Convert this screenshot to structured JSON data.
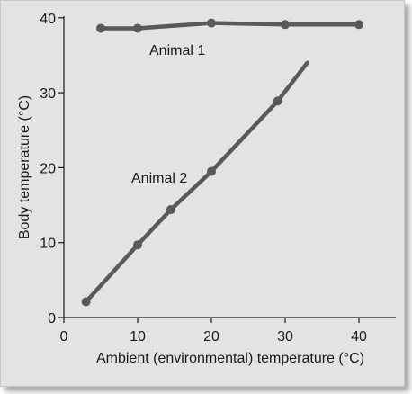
{
  "chart_data": {
    "type": "line",
    "xlabel": "Ambient (environmental) temperature (°C)",
    "ylabel": "Body temperature (°C)",
    "xlim": [
      0,
      45
    ],
    "ylim": [
      0,
      42
    ],
    "xticks": [
      0,
      10,
      20,
      30,
      40
    ],
    "yticks": [
      0,
      10,
      20,
      30,
      40
    ],
    "grid": false,
    "line_color": "#595959",
    "series": [
      {
        "name": "Animal 1",
        "points": [
          [
            5,
            38.6
          ],
          [
            10,
            38.6
          ],
          [
            20,
            39.3
          ],
          [
            30,
            39.1
          ],
          [
            40,
            39.1
          ]
        ]
      },
      {
        "name": "Animal 2",
        "points": [
          [
            3,
            2.1
          ],
          [
            10,
            9.7
          ],
          [
            14.5,
            14.4
          ],
          [
            20,
            19.5
          ],
          [
            29,
            28.9
          ],
          [
            33,
            34
          ]
        ],
        "marked_points": 5
      }
    ]
  }
}
